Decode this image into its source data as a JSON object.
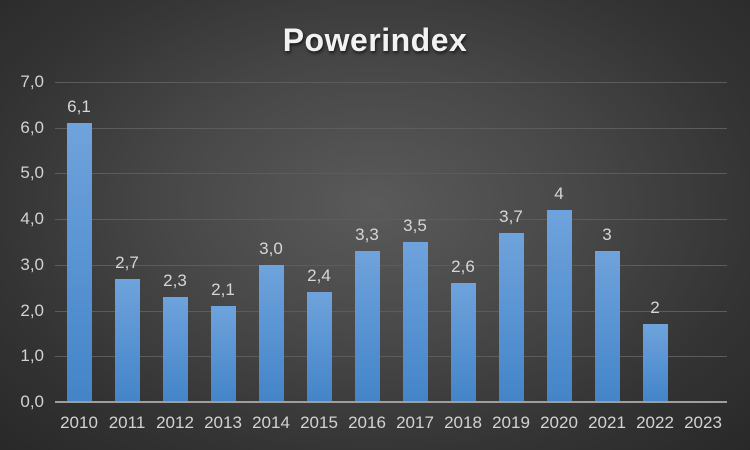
{
  "title": "Powerindex",
  "colors": {
    "bar_gradient_top": "#6FA3DC",
    "bar_gradient_bottom": "#4384C8",
    "background_center": "#5a5a5a",
    "background_edge": "#262626",
    "gridline": "#5c5c5c",
    "axis_line": "#9e9e9e",
    "tick_label_text": "#d2d2d2",
    "data_label_text": "#d6d6d6",
    "title_text": "#f2f2f2"
  },
  "chart_data": {
    "type": "bar",
    "title": "Powerindex",
    "categories": [
      "2010",
      "2011",
      "2012",
      "2013",
      "2014",
      "2015",
      "2016",
      "2017",
      "2018",
      "2019",
      "2020",
      "2021",
      "2022",
      "2023"
    ],
    "values": [
      6.1,
      2.7,
      2.3,
      2.1,
      3.0,
      2.4,
      3.3,
      3.5,
      2.6,
      3.7,
      4.2,
      3.3,
      1.7,
      null
    ],
    "data_labels": [
      "6,1",
      "2,7",
      "2,3",
      "2,1",
      "3,0",
      "2,4",
      "3,3",
      "3,5",
      "2,6",
      "3,7",
      "4",
      "3",
      "2",
      ""
    ],
    "xlabel": "",
    "ylabel": "",
    "ylim": [
      0,
      7
    ],
    "ytick_step": 1,
    "ytick_labels": [
      "0,0",
      "1,0",
      "2,0",
      "3,0",
      "4,0",
      "5,0",
      "6,0",
      "7,0"
    ],
    "grid": true,
    "legend": false,
    "notes": "dark slide background, single blue series, value labels above bars, no bar for 2023"
  }
}
